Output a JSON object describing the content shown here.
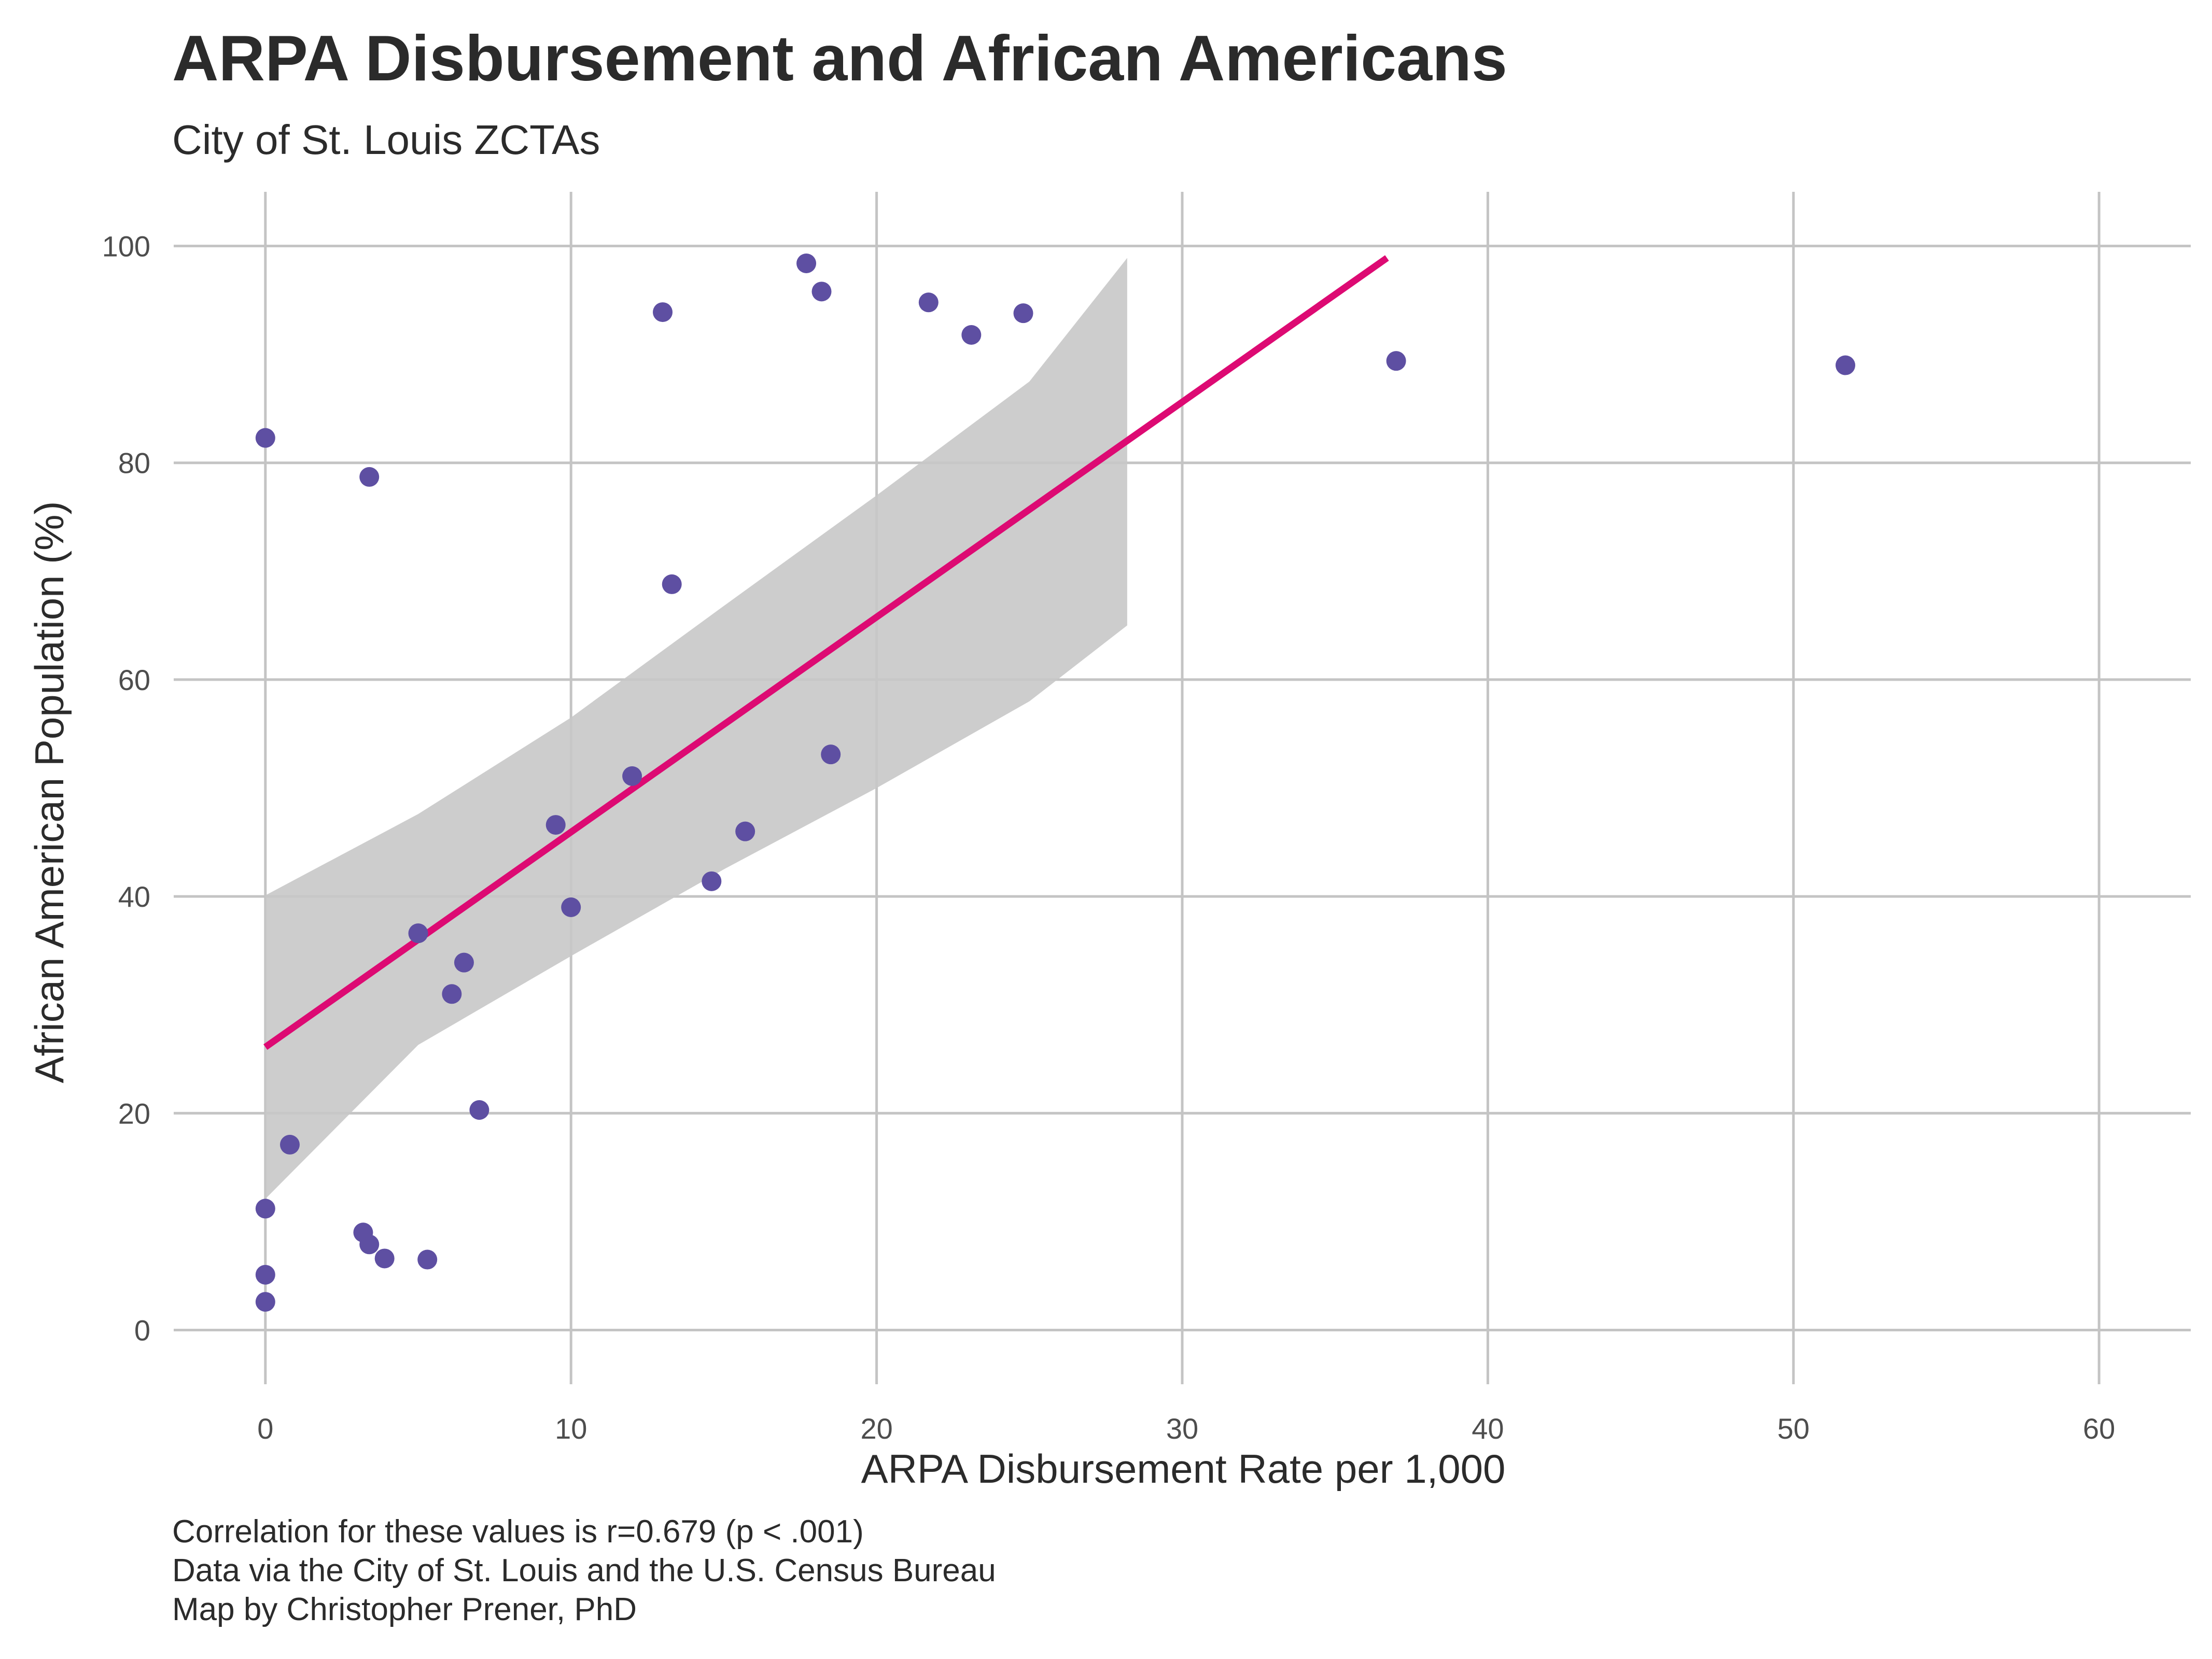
{
  "chart_data": {
    "type": "scatter",
    "title": "ARPA Disbursement and African Americans",
    "subtitle": "City of St. Louis ZCTAs",
    "xlabel": "ARPA Disbursement Rate per 1,000",
    "ylabel": "African American Population (%)",
    "xlim": [
      -3,
      63
    ],
    "ylim": [
      -5,
      105
    ],
    "x_ticks": [
      "0",
      "10",
      "20",
      "30",
      "40",
      "50",
      "60"
    ],
    "y_ticks": [
      "0",
      "20",
      "40",
      "60",
      "80",
      "100"
    ],
    "grid": true,
    "point_color": "#5e4fa2",
    "line_color": "#dd0a73",
    "band_color": "#c8c8c8",
    "points": [
      {
        "x": 0.0,
        "y": 82.3
      },
      {
        "x": 0.0,
        "y": 11.2
      },
      {
        "x": 0.0,
        "y": 5.1
      },
      {
        "x": 0.0,
        "y": 2.6
      },
      {
        "x": 0.8,
        "y": 17.1
      },
      {
        "x": 3.2,
        "y": 9.0
      },
      {
        "x": 3.4,
        "y": 7.9
      },
      {
        "x": 3.4,
        "y": 78.7
      },
      {
        "x": 3.9,
        "y": 6.6
      },
      {
        "x": 5.0,
        "y": 36.6
      },
      {
        "x": 5.3,
        "y": 6.5
      },
      {
        "x": 6.1,
        "y": 31.0
      },
      {
        "x": 6.5,
        "y": 33.9
      },
      {
        "x": 7.0,
        "y": 20.3
      },
      {
        "x": 9.5,
        "y": 46.6
      },
      {
        "x": 10.0,
        "y": 39.0
      },
      {
        "x": 12.0,
        "y": 51.1
      },
      {
        "x": 13.0,
        "y": 93.9
      },
      {
        "x": 13.3,
        "y": 68.8
      },
      {
        "x": 14.6,
        "y": 41.4
      },
      {
        "x": 15.7,
        "y": 46.0
      },
      {
        "x": 17.7,
        "y": 98.4
      },
      {
        "x": 18.2,
        "y": 95.8
      },
      {
        "x": 18.5,
        "y": 53.1
      },
      {
        "x": 21.7,
        "y": 94.8
      },
      {
        "x": 23.1,
        "y": 91.8
      },
      {
        "x": 24.8,
        "y": 93.8
      },
      {
        "x": 37.0,
        "y": 89.4
      },
      {
        "x": 51.7,
        "y": 89.0
      }
    ],
    "fit_line": {
      "x": [
        0,
        36.7
      ],
      "y": [
        26.1,
        98.9
      ]
    },
    "confidence_band": {
      "x": [
        0,
        5,
        10,
        15,
        20,
        25,
        28.2
      ],
      "upper": [
        40.1,
        47.6,
        56.5,
        66.8,
        77.0,
        87.5,
        98.9
      ],
      "lower": [
        12.1,
        26.3,
        34.5,
        42.5,
        50.0,
        58.0,
        65.0
      ]
    }
  },
  "caption": [
    "Correlation for these values is r=0.679 (p < .001)",
    "Data via the City of St. Louis and the U.S. Census Bureau",
    "Map by Christopher Prener, PhD"
  ]
}
